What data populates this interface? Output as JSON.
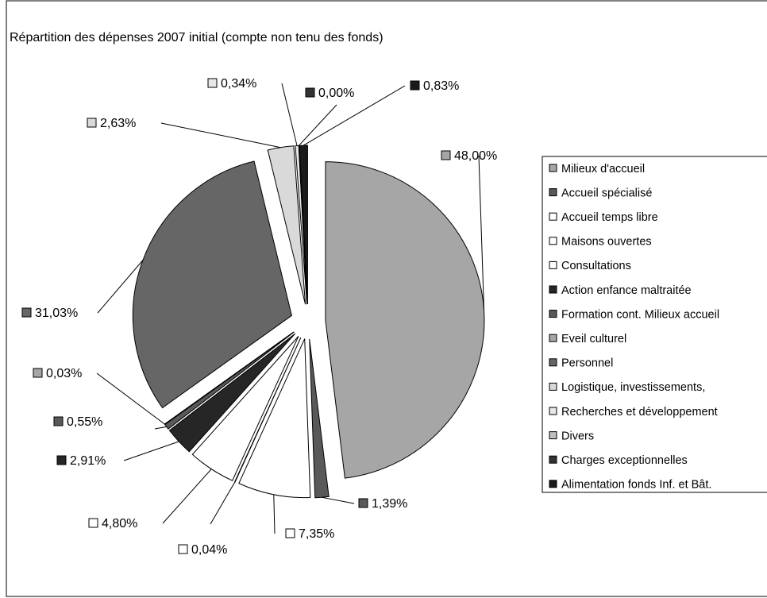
{
  "chart_data": {
    "type": "pie",
    "title": "Répartition des dépenses 2007 initial (compte non tenu des fonds)",
    "categories": [
      "Milieux d'accueil",
      "Accueil spécialisé",
      "Accueil temps libre",
      "Maisons ouvertes",
      "Consultations",
      "Action enfance maltraitée",
      "Formation cont. Milieux accueil",
      "Eveil culturel",
      "Personnel",
      "Logistique, investissements,",
      "Recherches et développement",
      "Divers",
      "Charges exceptionnelles",
      "Alimentation fonds Inf. et Bât."
    ],
    "values": [
      48.0,
      1.39,
      7.35,
      0.04,
      4.8,
      2.91,
      0.55,
      0.03,
      31.03,
      2.63,
      0.34,
      0,
      0.0,
      0.83
    ],
    "value_labels": [
      "48,00%",
      "1,39%",
      "7,35%",
      "0,04%",
      "4,80%",
      "2,91%",
      "0,55%",
      "0,03%",
      "31,03%",
      "2,63%",
      "0,34%",
      null,
      "0,00%",
      "0,83%"
    ],
    "colors": [
      "#a6a6a6",
      "#595959",
      "#ffffff",
      "#ffffff",
      "#ffffff",
      "#262626",
      "#595959",
      "#a6a6a6",
      "#666666",
      "#d9d9d9",
      "#e8e8e8",
      "#bfbfbf",
      "#333333",
      "#1a1a1a"
    ],
    "legend": "right"
  }
}
